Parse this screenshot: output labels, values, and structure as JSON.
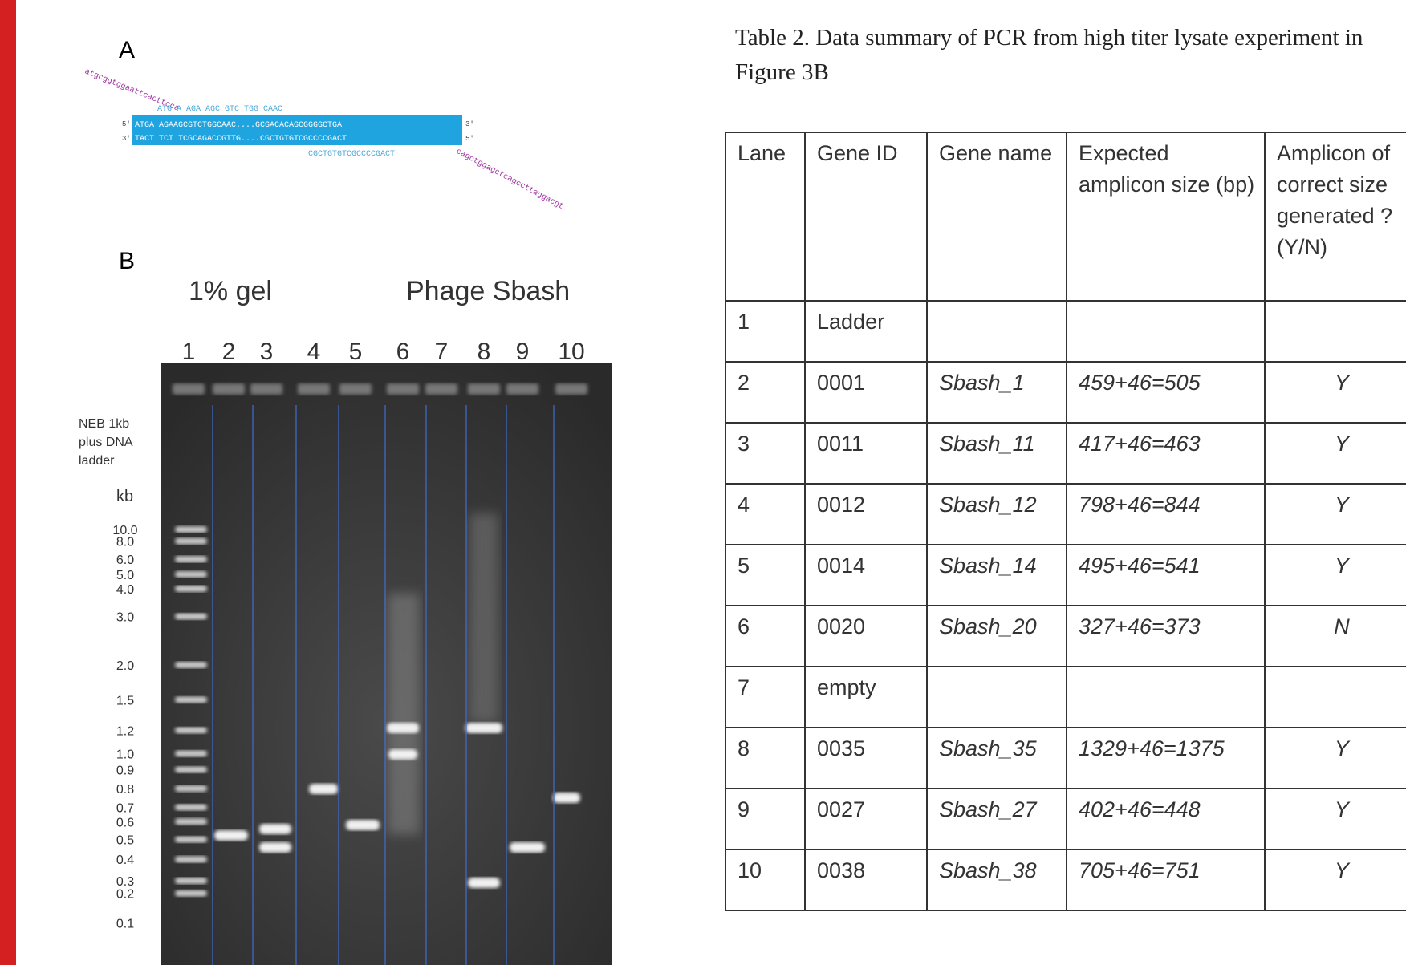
{
  "panel_a": {
    "label": "A",
    "primer_forward": "ATG A AGA AGC GTC TGG CAAC",
    "primer_forward_tail": "atgcggtggaattcacttcca",
    "top_strand": "ATGA AGAAGCGTCTGGCAAC....GCGACACAGCGGGGCTGA",
    "bottom_strand": "TACT TCT TCGCAGACCGTTG....CGCTGTGTCGCCCCGACT",
    "primer_reverse": "CGCTGTGTCGCCCCGACT",
    "primer_reverse_tail": "cagctggagctcagccttaggacgt",
    "end_5": "5'",
    "end_3": "3'"
  },
  "panel_b": {
    "label": "B",
    "gel_title": "1% gel",
    "phage_title": "Phage Sbash",
    "lanes": [
      "1",
      "2",
      "3",
      "4",
      "5",
      "6",
      "7",
      "8",
      "9",
      "10"
    ],
    "ladder_name": [
      "NEB 1kb",
      "plus DNA",
      "ladder"
    ],
    "ladder_unit": "kb",
    "ladder_sizes": [
      "10.0",
      "8.0",
      "6.0",
      "5.0",
      "4.0",
      "3.0",
      "2.0",
      "1.5",
      "1.2",
      "1.0",
      "0.9",
      "0.8",
      "0.7",
      "0.6",
      "0.5",
      "0.4",
      "0.3",
      "0.2",
      "0.1"
    ]
  },
  "table": {
    "title": "Table 2. Data summary of PCR from high titer lysate experiment in Figure 3B",
    "header": [
      "Lane",
      "Gene ID",
      "Gene name",
      "Expected amplicon size (bp)",
      "Amplicon of correct size generated ? (Y/N)"
    ],
    "rows": [
      {
        "lane": "1",
        "gene_id": "Ladder"
      },
      {
        "lane": "2",
        "gene_id": "0001",
        "gene_name": "Sbash_1",
        "expected": "459+46=505",
        "correct": "Y"
      },
      {
        "lane": "3",
        "gene_id": "0011",
        "gene_name": "Sbash_11",
        "expected": "417+46=463",
        "correct": "Y"
      },
      {
        "lane": "4",
        "gene_id": "0012",
        "gene_name": "Sbash_12",
        "expected": "798+46=844",
        "correct": "Y"
      },
      {
        "lane": "5",
        "gene_id": "0014",
        "gene_name": "Sbash_14",
        "expected": "495+46=541",
        "correct": "Y"
      },
      {
        "lane": "6",
        "gene_id": "0020",
        "gene_name": "Sbash_20",
        "expected": "327+46=373",
        "correct": "N"
      },
      {
        "lane": "7",
        "gene_id": "empty"
      },
      {
        "lane": "8",
        "gene_id": "0035",
        "gene_name": "Sbash_35",
        "expected": "1329+46=1375",
        "correct": "Y"
      },
      {
        "lane": "9",
        "gene_id": "0027",
        "gene_name": "Sbash_27",
        "expected": "402+46=448",
        "correct": "Y"
      },
      {
        "lane": "10",
        "gene_id": "0038",
        "gene_name": "Sbash_38",
        "expected": "705+46=751",
        "correct": "Y"
      }
    ]
  }
}
